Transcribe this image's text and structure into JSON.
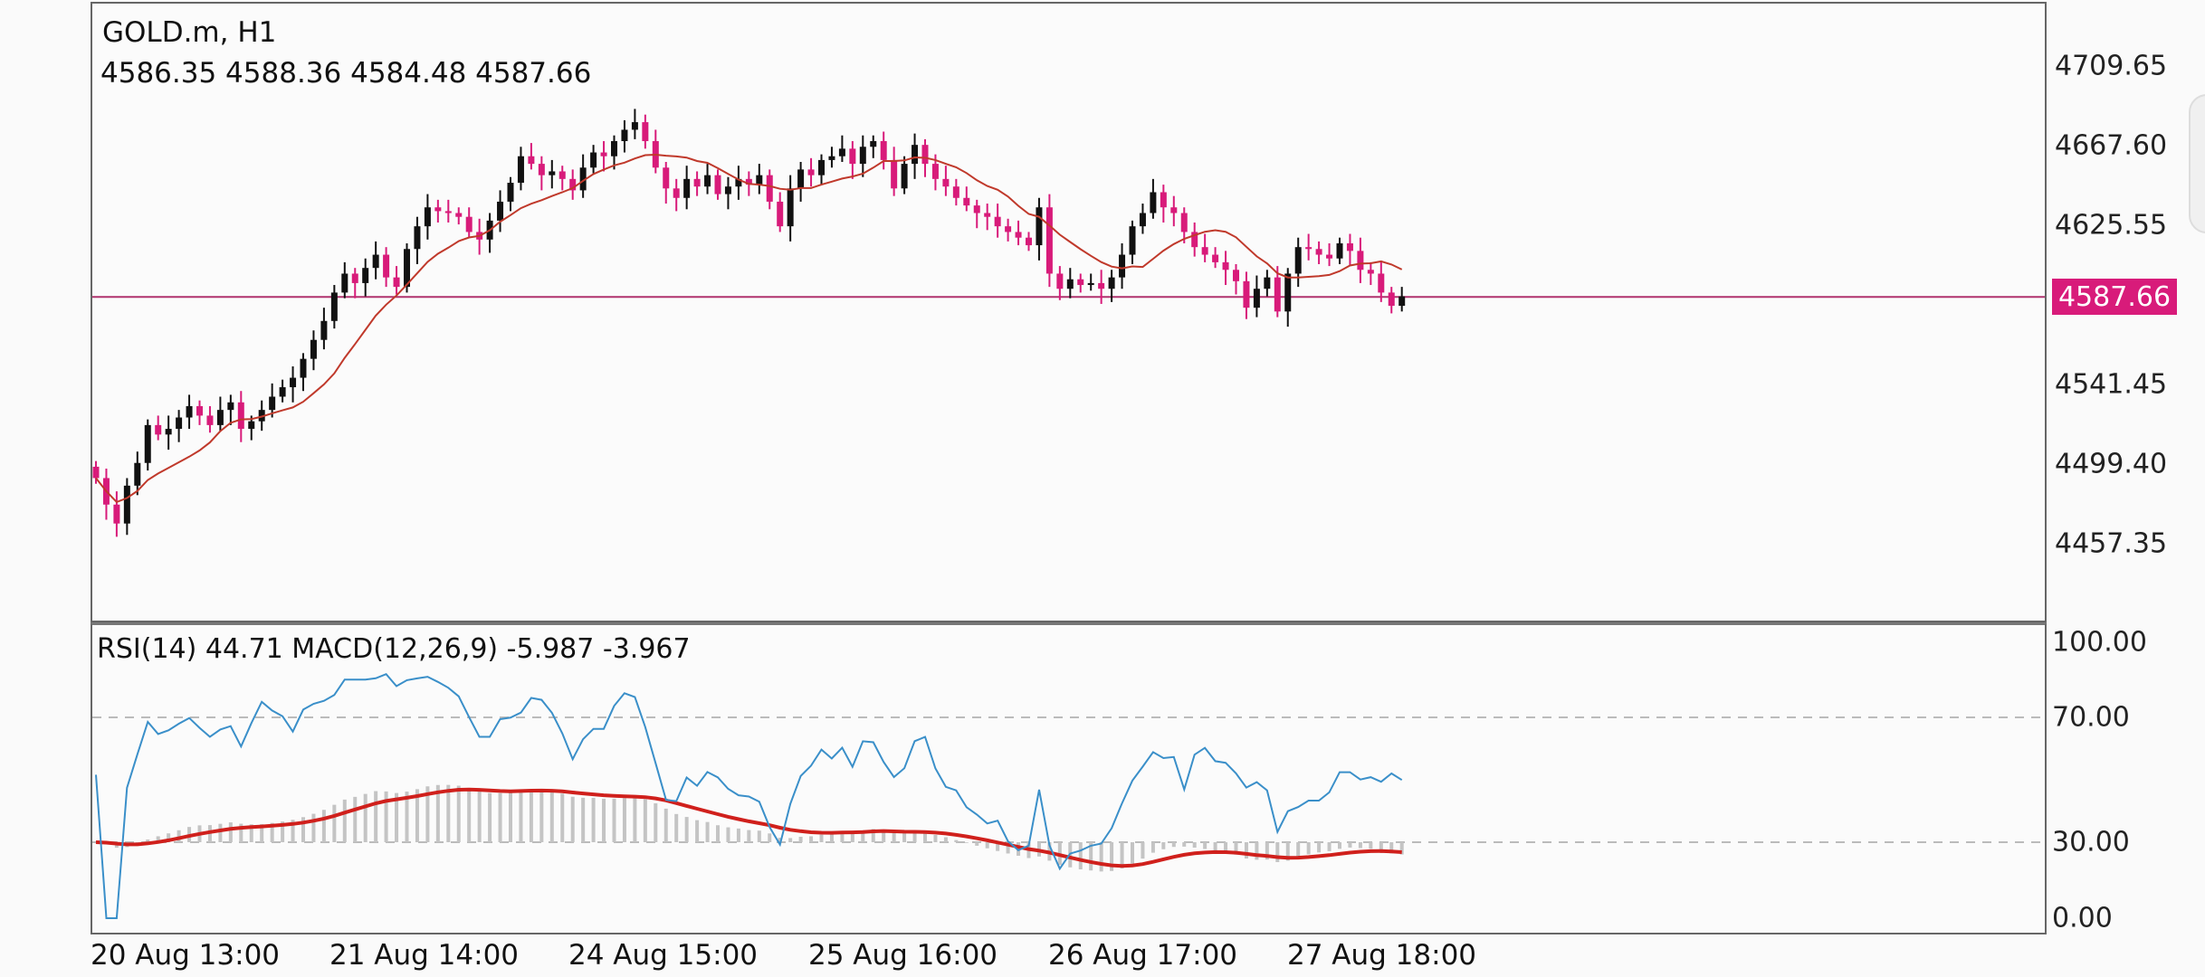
{
  "header": {
    "symbol": "GOLD.m, H1",
    "ohlc": "4586.35 4588.36 4584.48 4587.66",
    "indicator": "RSI(14) 44.71 MACD(12,26,9) -5.987 -3.967"
  },
  "current_price": "4587.66",
  "price_axis": [
    "4709.65",
    "4667.60",
    "4625.55",
    "4541.45",
    "4499.40",
    "4457.35"
  ],
  "indicator_axis": [
    "100.00",
    "70.00",
    "30.00",
    "0.00"
  ],
  "time_axis": [
    "20 Aug 13:00",
    "21 Aug 14:00",
    "24 Aug 15:00",
    "25 Aug 16:00",
    "26 Aug 17:00",
    "27 Aug 18:00"
  ],
  "colors": {
    "bull": "#111111",
    "bear": "#d81b7a",
    "ma": "#c0392b",
    "rsi": "#3a8fc9",
    "signal": "#d0201c",
    "histogram": "#c4c4c4",
    "price_line": "#b0336e"
  },
  "chart_data": {
    "type": "candlestick",
    "title": "",
    "ylim": [
      4440,
      4725
    ],
    "current_price": 4587.66,
    "closes": [
      4492,
      4478,
      4468,
      4488,
      4500,
      4520,
      4515,
      4518,
      4524,
      4530,
      4525,
      4520,
      4528,
      4532,
      4518,
      4522,
      4528,
      4535,
      4540,
      4545,
      4555,
      4565,
      4575,
      4590,
      4600,
      4595,
      4603,
      4610,
      4598,
      4593,
      4613,
      4625,
      4635,
      4633,
      4632,
      4630,
      4622,
      4618,
      4628,
      4638,
      4648,
      4662,
      4658,
      4652,
      4654,
      4650,
      4644,
      4656,
      4664,
      4662,
      4670,
      4676,
      4680,
      4670,
      4656,
      4645,
      4640,
      4650,
      4646,
      4652,
      4642,
      4646,
      4650,
      4647,
      4652,
      4638,
      4625,
      4645,
      4655,
      4652,
      4660,
      4662,
      4666,
      4658,
      4667,
      4670,
      4660,
      4645,
      4658,
      4668,
      4658,
      4650,
      4646,
      4640,
      4636,
      4632,
      4630,
      4625,
      4622,
      4619,
      4615,
      4635,
      4600,
      4592,
      4597,
      4594,
      4595,
      4592,
      4598,
      4610,
      4625,
      4632,
      4643,
      4635,
      4632,
      4622,
      4614,
      4610,
      4606,
      4602,
      4596,
      4582,
      4592,
      4598,
      4580,
      4600,
      4614,
      4613,
      4610,
      4608,
      4616,
      4612,
      4602,
      4600,
      4590,
      4583,
      4588
    ],
    "series": [
      {
        "name": "RSI(14)",
        "last": 44.71
      },
      {
        "name": "MACD(12,26,9)",
        "last": [
          -5.987,
          -3.967
        ]
      }
    ]
  }
}
